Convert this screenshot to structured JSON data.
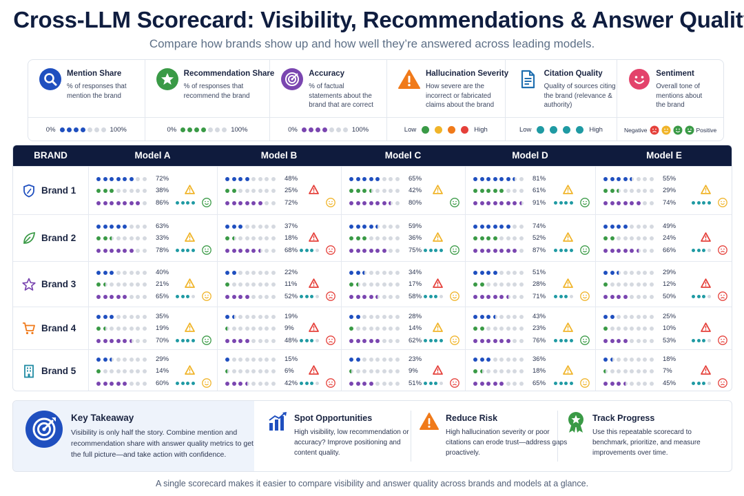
{
  "title": "Cross-LLM Scorecard: Visibility, Recommendations & Answer Quality",
  "subtitle": "Compare how brands show up and how well they’re answered across leading models.",
  "colors": {
    "mention": "#1f4fbf",
    "recommend": "#3a9a46",
    "accuracy": "#7a46b0",
    "citation": "#1f9aa3",
    "empty": "#d5d9e0",
    "sev_low": "#3a9a46",
    "sev_mid": "#f0b429",
    "sev_high": "#e5403a",
    "header_bg": "#0f1b3d"
  },
  "legend": [
    {
      "title": "Mention Share",
      "desc": "% of responses that mention the brand",
      "icon": "search-icon",
      "scale_left": "0%",
      "scale_right": "100%"
    },
    {
      "title": "Recommendation Share",
      "desc": "% of responses that recommend the brand",
      "icon": "star-badge-icon",
      "scale_left": "0%",
      "scale_right": "100%"
    },
    {
      "title": "Accuracy",
      "desc": "% of factual statements about the brand that are correct",
      "icon": "target-icon",
      "scale_left": "0%",
      "scale_right": "100%"
    },
    {
      "title": "Hallucination Severity",
      "desc": "How severe are the incorrect or fabricated claims about the brand",
      "icon": "warning-icon",
      "scale_left": "Low",
      "scale_right": "High"
    },
    {
      "title": "Citation Quality",
      "desc": "Quality of sources citing the brand (relevance & authority)",
      "icon": "document-icon",
      "scale_left": "Low",
      "scale_right": "High"
    },
    {
      "title": "Sentiment",
      "desc": "Overall tone of mentions about the brand",
      "icon": "smiley-icon",
      "scale_left": "Negative",
      "scale_right": "Positive"
    }
  ],
  "table": {
    "brand_header": "BRAND",
    "models": [
      "Model A",
      "Model B",
      "Model C",
      "Model D",
      "Model E"
    ],
    "brands": [
      {
        "name": "Brand 1",
        "icon": "shield-icon",
        "cells": [
          {
            "mention": "72%",
            "rec": "38%",
            "acc": "86%",
            "m": 0.72,
            "r": 0.38,
            "a": 0.86,
            "sev": "medium",
            "cit": 4,
            "sent": "positive"
          },
          {
            "mention": "48%",
            "rec": "25%",
            "acc": "72%",
            "m": 0.48,
            "r": 0.25,
            "a": 0.72,
            "sev": "high",
            "cit": 0,
            "sent": "neutral"
          },
          {
            "mention": "65%",
            "rec": "42%",
            "acc": "80%",
            "m": 0.65,
            "r": 0.42,
            "a": 0.8,
            "sev": "medium",
            "cit": 0,
            "sent": "positive"
          },
          {
            "mention": "81%",
            "rec": "61%",
            "acc": "91%",
            "m": 0.81,
            "r": 0.61,
            "a": 0.91,
            "sev": "medium",
            "cit": 4,
            "sent": "positive"
          },
          {
            "mention": "55%",
            "rec": "29%",
            "acc": "74%",
            "m": 0.55,
            "r": 0.29,
            "a": 0.74,
            "sev": "medium",
            "cit": 4,
            "sent": "neutral"
          }
        ]
      },
      {
        "name": "Brand 2",
        "icon": "leaf-icon",
        "cells": [
          {
            "mention": "63%",
            "rec": "33%",
            "acc": "78%",
            "m": 0.63,
            "r": 0.33,
            "a": 0.78,
            "sev": "medium",
            "cit": 4,
            "sent": "positive"
          },
          {
            "mention": "37%",
            "rec": "18%",
            "acc": "68%",
            "m": 0.37,
            "r": 0.18,
            "a": 0.68,
            "sev": "high",
            "cit": 3,
            "sent": "negative"
          },
          {
            "mention": "59%",
            "rec": "36%",
            "acc": "75%",
            "m": 0.59,
            "r": 0.36,
            "a": 0.75,
            "sev": "medium",
            "cit": 4,
            "sent": "positive"
          },
          {
            "mention": "74%",
            "rec": "52%",
            "acc": "87%",
            "m": 0.74,
            "r": 0.52,
            "a": 0.87,
            "sev": "medium",
            "cit": 4,
            "sent": "positive"
          },
          {
            "mention": "49%",
            "rec": "24%",
            "acc": "66%",
            "m": 0.49,
            "r": 0.24,
            "a": 0.66,
            "sev": "high",
            "cit": 3,
            "sent": "negative"
          }
        ]
      },
      {
        "name": "Brand 3",
        "icon": "star-icon",
        "cells": [
          {
            "mention": "40%",
            "rec": "21%",
            "acc": "65%",
            "m": 0.4,
            "r": 0.21,
            "a": 0.65,
            "sev": "medium",
            "cit": 3,
            "sent": "neutral"
          },
          {
            "mention": "22%",
            "rec": "11%",
            "acc": "52%",
            "m": 0.22,
            "r": 0.11,
            "a": 0.52,
            "sev": "high",
            "cit": 3,
            "sent": "negative"
          },
          {
            "mention": "34%",
            "rec": "17%",
            "acc": "58%",
            "m": 0.34,
            "r": 0.17,
            "a": 0.58,
            "sev": "high",
            "cit": 3,
            "sent": "neutral"
          },
          {
            "mention": "51%",
            "rec": "28%",
            "acc": "71%",
            "m": 0.51,
            "r": 0.28,
            "a": 0.71,
            "sev": "medium",
            "cit": 3,
            "sent": "neutral"
          },
          {
            "mention": "29%",
            "rec": "12%",
            "acc": "50%",
            "m": 0.29,
            "r": 0.12,
            "a": 0.5,
            "sev": "high",
            "cit": 3,
            "sent": "negative"
          }
        ]
      },
      {
        "name": "Brand 4",
        "icon": "cart-icon",
        "cells": [
          {
            "mention": "35%",
            "rec": "19%",
            "acc": "70%",
            "m": 0.35,
            "r": 0.19,
            "a": 0.7,
            "sev": "medium",
            "cit": 4,
            "sent": "positive"
          },
          {
            "mention": "19%",
            "rec": "9%",
            "acc": "48%",
            "m": 0.19,
            "r": 0.09,
            "a": 0.48,
            "sev": "high",
            "cit": 3,
            "sent": "negative"
          },
          {
            "mention": "28%",
            "rec": "14%",
            "acc": "62%",
            "m": 0.28,
            "r": 0.14,
            "a": 0.62,
            "sev": "medium",
            "cit": 4,
            "sent": "neutral"
          },
          {
            "mention": "43%",
            "rec": "23%",
            "acc": "76%",
            "m": 0.43,
            "r": 0.23,
            "a": 0.76,
            "sev": "medium",
            "cit": 4,
            "sent": "positive"
          },
          {
            "mention": "25%",
            "rec": "10%",
            "acc": "53%",
            "m": 0.25,
            "r": 0.1,
            "a": 0.53,
            "sev": "high",
            "cit": 3,
            "sent": "negative"
          }
        ]
      },
      {
        "name": "Brand 5",
        "icon": "building-icon",
        "cells": [
          {
            "mention": "29%",
            "rec": "14%",
            "acc": "60%",
            "m": 0.29,
            "r": 0.14,
            "a": 0.6,
            "sev": "medium",
            "cit": 4,
            "sent": "neutral"
          },
          {
            "mention": "15%",
            "rec": "6%",
            "acc": "42%",
            "m": 0.15,
            "r": 0.06,
            "a": 0.42,
            "sev": "high",
            "cit": 3,
            "sent": "negative"
          },
          {
            "mention": "23%",
            "rec": "9%",
            "acc": "51%",
            "m": 0.23,
            "r": 0.09,
            "a": 0.51,
            "sev": "high",
            "cit": 3,
            "sent": "negative"
          },
          {
            "mention": "36%",
            "rec": "18%",
            "acc": "65%",
            "m": 0.36,
            "r": 0.18,
            "a": 0.65,
            "sev": "medium",
            "cit": 4,
            "sent": "neutral"
          },
          {
            "mention": "18%",
            "rec": "7%",
            "acc": "45%",
            "m": 0.18,
            "r": 0.07,
            "a": 0.45,
            "sev": "high",
            "cit": 3,
            "sent": "negative"
          }
        ]
      }
    ]
  },
  "takeaway": {
    "title": "Key Takeaway",
    "text": "Visibility is only half the story. Combine mention and recommendation share with answer quality metrics to get the full picture—and take action with confidence.",
    "icon": "target-icon"
  },
  "actions": [
    {
      "title": "Spot Opportunities",
      "text": "High visibility, low recommendation or accuracy? Improve positioning and content quality.",
      "icon": "bar-chart-icon"
    },
    {
      "title": "Reduce Risk",
      "text": "High hallucination severity or poor citations can erode trust—address gaps proactively.",
      "icon": "warning-icon"
    },
    {
      "title": "Track Progress",
      "text": "Use this repeatable scorecard to benchmark, prioritize, and measure improvements over time.",
      "icon": "award-icon"
    }
  ],
  "footer": "A single scorecard makes it easier to compare visibility and answer quality across brands and models at a glance."
}
